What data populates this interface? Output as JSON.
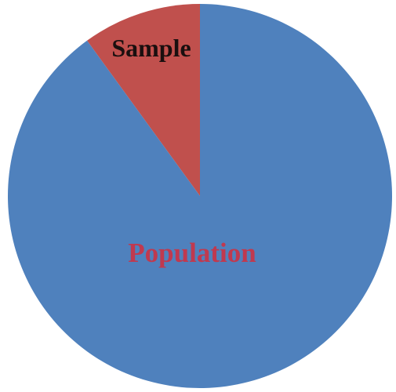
{
  "chart_data": {
    "type": "pie",
    "title": "",
    "slices": [
      {
        "label": "Sample",
        "value": 10,
        "color": "#c0504d",
        "label_color": "#1a0f0f"
      },
      {
        "label": "Population",
        "value": 90,
        "color": "#4f81bd",
        "label_color": "#c0394f"
      }
    ],
    "start_angle": "12 o'clock",
    "direction": "counter-clockwise",
    "legend": "none"
  }
}
